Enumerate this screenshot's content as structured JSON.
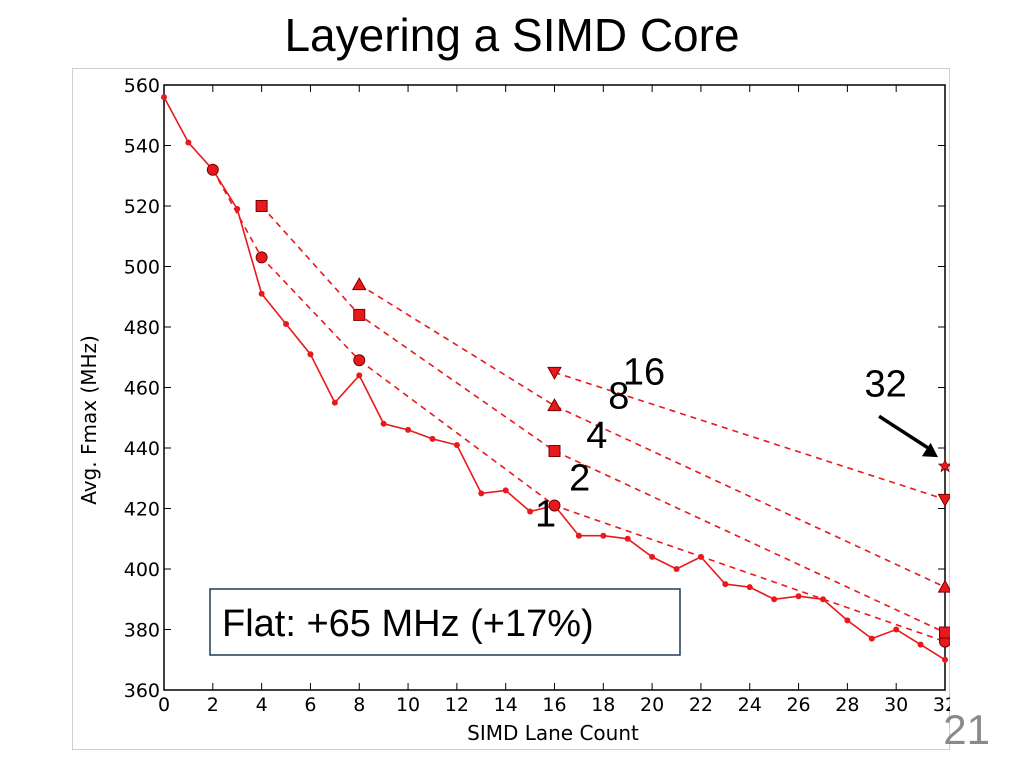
{
  "slide": {
    "title": "Layering a SIMD Core",
    "number": "21"
  },
  "chart_data": {
    "type": "line",
    "xlabel": "SIMD Lane Count",
    "ylabel": "Avg. Fmax (MHz)",
    "xlim": [
      0,
      32
    ],
    "ylim": [
      360,
      560
    ],
    "xticks": [
      0,
      2,
      4,
      6,
      8,
      10,
      12,
      14,
      16,
      18,
      20,
      22,
      24,
      26,
      28,
      30,
      32
    ],
    "yticks": [
      360,
      380,
      400,
      420,
      440,
      460,
      480,
      500,
      520,
      540,
      560
    ],
    "grid": false,
    "color": "#e8191c",
    "series": [
      {
        "name": "1",
        "style": "solid",
        "marker": "dot",
        "x": [
          0,
          1,
          2,
          3,
          4,
          5,
          6,
          7,
          8,
          9,
          10,
          11,
          12,
          13,
          14,
          15,
          16,
          17,
          18,
          19,
          20,
          21,
          22,
          23,
          24,
          25,
          26,
          27,
          28,
          29,
          30,
          31,
          32
        ],
        "y": [
          556,
          541,
          532,
          519,
          491,
          481,
          471,
          455,
          464,
          448,
          446,
          443,
          441,
          425,
          426,
          419,
          421,
          411,
          411,
          410,
          404,
          400,
          404,
          395,
          394,
          390,
          391,
          390,
          383,
          377,
          380,
          375,
          370
        ]
      },
      {
        "name": "2",
        "style": "dashed",
        "marker": "circle",
        "x": [
          2,
          4,
          8,
          16,
          32
        ],
        "y": [
          532,
          503,
          469,
          421,
          376
        ]
      },
      {
        "name": "4",
        "style": "dashed",
        "marker": "square",
        "x": [
          4,
          8,
          16,
          32
        ],
        "y": [
          520,
          484,
          439,
          379
        ]
      },
      {
        "name": "8",
        "style": "dashed",
        "marker": "triangle-up",
        "x": [
          8,
          16,
          32
        ],
        "y": [
          494,
          454,
          394
        ]
      },
      {
        "name": "16",
        "style": "dashed",
        "marker": "triangle-down",
        "x": [
          16,
          32
        ],
        "y": [
          465,
          423
        ]
      },
      {
        "name": "32",
        "style": "none",
        "marker": "star",
        "x": [
          32
        ],
        "y": [
          434
        ]
      }
    ],
    "annotations": [
      {
        "text": "1",
        "x": 15.2,
        "y": 414
      },
      {
        "text": "2",
        "x": 16.6,
        "y": 426
      },
      {
        "text": "4",
        "x": 17.3,
        "y": 440
      },
      {
        "text": "8",
        "x": 18.2,
        "y": 453
      },
      {
        "text": "16",
        "x": 18.8,
        "y": 461
      },
      {
        "text": "32",
        "x": 28.7,
        "y": 457
      }
    ],
    "callout": "Flat: +65 MHz (+17%)"
  }
}
